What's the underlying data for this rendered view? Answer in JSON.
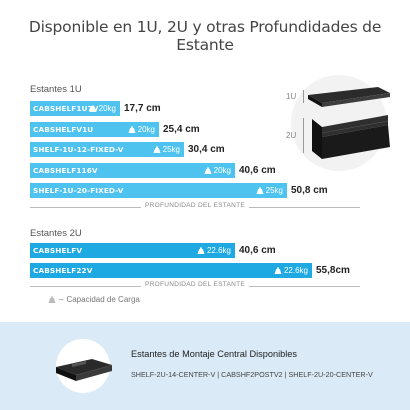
{
  "title": "Disponible en 1U, 2U y otras Profundidades de Estante",
  "section_1u": {
    "label": "Estantes 1U",
    "rows": [
      {
        "name": "CABSHELF1U7V",
        "load": "20kg",
        "depth": "17,7 cm"
      },
      {
        "name": "CABSHELFV1U",
        "load": "20kg",
        "depth": "25,4 cm"
      },
      {
        "name": "SHELF-1U-12-FIXED-V",
        "load": "25kg",
        "depth": "30,4 cm"
      },
      {
        "name": "CABSHELF116V",
        "load": "20kg",
        "depth": "40,6 cm"
      },
      {
        "name": "SHELF-1U-20-FIXED-V",
        "load": "25kg",
        "depth": "50,8 cm"
      }
    ],
    "axis_label": "PROFUNDIDAD DEL ESTANTE"
  },
  "section_2u": {
    "label": "Estantes 2U",
    "rows": [
      {
        "name": "CABSHELFV",
        "load": "22.6kg",
        "depth": "40,6 cm"
      },
      {
        "name": "CABSHELF22V",
        "load": "22.6kg",
        "depth": "55,8cm"
      }
    ],
    "axis_label": "PROFUNDIDAD DEL ESTANTE"
  },
  "legend": {
    "label": "Capacidad de Carga",
    "icon": "weight-icon"
  },
  "image_labels": {
    "u1": "1U",
    "u2": "2U"
  },
  "footer": {
    "title": "Estantes de Montaje Central Disponibles",
    "models": "SHELF-2U-14-CENTER-V | CABSHF2POSTV2 | SHELF-2U-20-CENTER-V"
  },
  "colors": {
    "bar_light": "#4fc3ef",
    "bar_dark": "#1ea9e3",
    "footer_bg": "#daeaf7"
  },
  "chart_data": {
    "type": "bar",
    "orientation": "horizontal",
    "xlabel": "PROFUNDIDAD DEL ESTANTE",
    "groups": [
      {
        "name": "Estantes 1U",
        "categories": [
          "CABSHELF1U7V",
          "CABSHELFV1U",
          "SHELF-1U-12-FIXED-V",
          "CABSHELF116V",
          "SHELF-1U-20-FIXED-V"
        ],
        "values": [
          17.7,
          25.4,
          30.4,
          40.6,
          50.8
        ],
        "loads_kg": [
          20,
          20,
          25,
          20,
          25
        ]
      },
      {
        "name": "Estantes 2U",
        "categories": [
          "CABSHELFV",
          "CABSHELF22V"
        ],
        "values": [
          40.6,
          55.8
        ],
        "loads_kg": [
          22.6,
          22.6
        ]
      }
    ]
  }
}
